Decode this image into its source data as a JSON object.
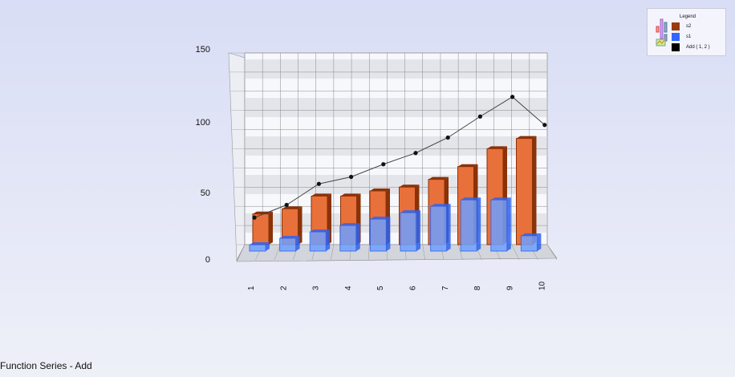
{
  "chart_data": {
    "type": "bar",
    "title": "",
    "categories": [
      "1",
      "2",
      "3",
      "4",
      "5",
      "6",
      "7",
      "8",
      "9",
      "10"
    ],
    "series": [
      {
        "name": "s2",
        "type": "bar3d",
        "color": "#e8703a",
        "values": [
          24,
          28,
          38,
          38,
          42,
          45,
          51,
          61,
          75,
          83
        ]
      },
      {
        "name": "s1",
        "type": "bar3d",
        "color": "#3f7cf5",
        "values": [
          5,
          10,
          15,
          20,
          25,
          30,
          35,
          40,
          40,
          12
        ]
      },
      {
        "name": "Add ( 1, 2 )",
        "type": "line",
        "color": "#000000",
        "values": [
          29,
          38,
          53,
          58,
          67,
          75,
          86,
          101,
          115,
          95
        ]
      }
    ],
    "yticks": [
      "0",
      "50",
      "100",
      "150"
    ],
    "ylim": [
      0,
      150
    ],
    "grid": true,
    "legend_position": "top-right",
    "legend_title": "Legend"
  },
  "footer": "Function Series - Add"
}
